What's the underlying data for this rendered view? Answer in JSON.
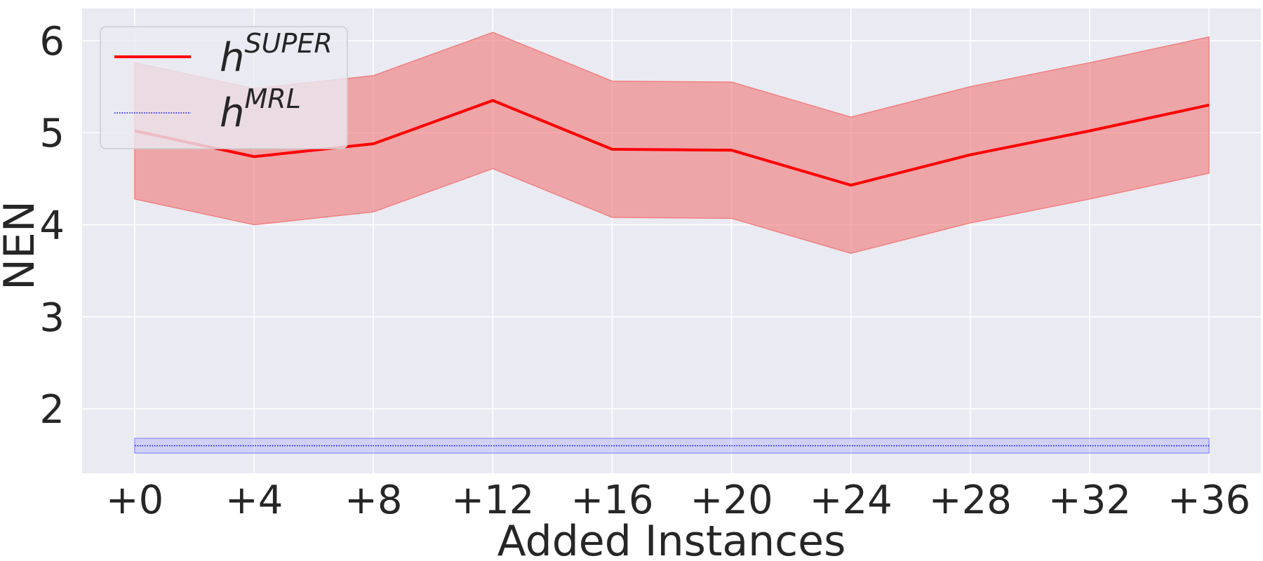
{
  "chart_data": {
    "type": "line",
    "xlabel": "Added Instances",
    "ylabel": "NEN",
    "categories": [
      "+0",
      "+4",
      "+8",
      "+12",
      "+16",
      "+20",
      "+24",
      "+28",
      "+32",
      "+36"
    ],
    "ylim": [
      1.3,
      6.35
    ],
    "yticks": [
      2,
      3,
      4,
      5,
      6
    ],
    "grid": true,
    "legend_position": "top-left",
    "series": [
      {
        "name": "h^SUPER",
        "legend_base": "h",
        "legend_sup": "SUPER",
        "color": "#ff0000",
        "style": "solid",
        "values": [
          5.02,
          4.74,
          4.88,
          5.35,
          4.82,
          4.81,
          4.43,
          4.76,
          5.02,
          5.3
        ],
        "lower": [
          4.28,
          4.0,
          4.14,
          4.61,
          4.08,
          4.07,
          3.69,
          4.02,
          4.28,
          4.56
        ],
        "upper": [
          5.76,
          5.48,
          5.62,
          6.09,
          5.56,
          5.55,
          5.17,
          5.5,
          5.76,
          6.04
        ],
        "band_color": "#f08080"
      },
      {
        "name": "h^MRL",
        "legend_base": "h",
        "legend_sup": "MRL",
        "color": "#0000ff",
        "style": "dotted",
        "values": [
          1.6,
          1.6,
          1.6,
          1.6,
          1.6,
          1.6,
          1.6,
          1.6,
          1.6,
          1.6
        ],
        "lower": [
          1.52,
          1.52,
          1.52,
          1.52,
          1.52,
          1.52,
          1.52,
          1.52,
          1.52,
          1.52
        ],
        "upper": [
          1.68,
          1.68,
          1.68,
          1.68,
          1.68,
          1.68,
          1.68,
          1.68,
          1.68,
          1.68
        ],
        "band_color": "#9999ff"
      }
    ]
  }
}
